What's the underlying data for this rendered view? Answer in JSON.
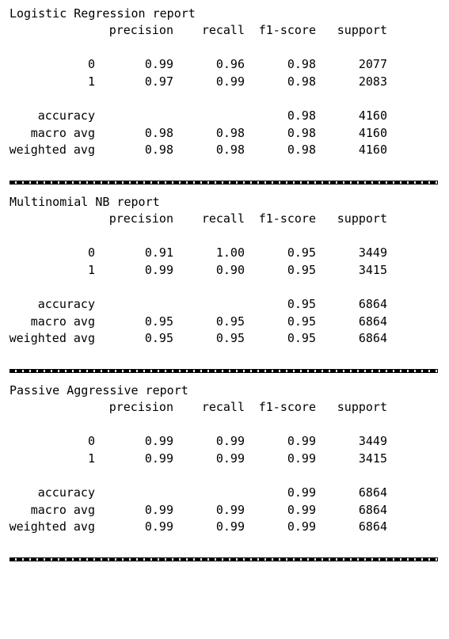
{
  "reports": [
    {
      "title": "Logistic Regression report",
      "headers": [
        "precision",
        "recall",
        "f1-score",
        "support"
      ],
      "class_rows": [
        {
          "label": "0",
          "precision": "0.99",
          "recall": "0.96",
          "f1": "0.98",
          "support": "2077"
        },
        {
          "label": "1",
          "precision": "0.97",
          "recall": "0.99",
          "f1": "0.98",
          "support": "2083"
        }
      ],
      "summary_rows": [
        {
          "label": "accuracy",
          "precision": "",
          "recall": "",
          "f1": "0.98",
          "support": "4160"
        },
        {
          "label": "macro avg",
          "precision": "0.98",
          "recall": "0.98",
          "f1": "0.98",
          "support": "4160"
        },
        {
          "label": "weighted avg",
          "precision": "0.98",
          "recall": "0.98",
          "f1": "0.98",
          "support": "4160"
        }
      ]
    },
    {
      "title": "Multinomial NB report",
      "headers": [
        "precision",
        "recall",
        "f1-score",
        "support"
      ],
      "class_rows": [
        {
          "label": "0",
          "precision": "0.91",
          "recall": "1.00",
          "f1": "0.95",
          "support": "3449"
        },
        {
          "label": "1",
          "precision": "0.99",
          "recall": "0.90",
          "f1": "0.95",
          "support": "3415"
        }
      ],
      "summary_rows": [
        {
          "label": "accuracy",
          "precision": "",
          "recall": "",
          "f1": "0.95",
          "support": "6864"
        },
        {
          "label": "macro avg",
          "precision": "0.95",
          "recall": "0.95",
          "f1": "0.95",
          "support": "6864"
        },
        {
          "label": "weighted avg",
          "precision": "0.95",
          "recall": "0.95",
          "f1": "0.95",
          "support": "6864"
        }
      ]
    },
    {
      "title": "Passive Aggressive report",
      "headers": [
        "precision",
        "recall",
        "f1-score",
        "support"
      ],
      "class_rows": [
        {
          "label": "0",
          "precision": "0.99",
          "recall": "0.99",
          "f1": "0.99",
          "support": "3449"
        },
        {
          "label": "1",
          "precision": "0.99",
          "recall": "0.99",
          "f1": "0.99",
          "support": "3415"
        }
      ],
      "summary_rows": [
        {
          "label": "accuracy",
          "precision": "",
          "recall": "",
          "f1": "0.99",
          "support": "6864"
        },
        {
          "label": "macro avg",
          "precision": "0.99",
          "recall": "0.99",
          "f1": "0.99",
          "support": "6864"
        },
        {
          "label": "weighted avg",
          "precision": "0.99",
          "recall": "0.99",
          "f1": "0.99",
          "support": "6864"
        }
      ]
    }
  ]
}
